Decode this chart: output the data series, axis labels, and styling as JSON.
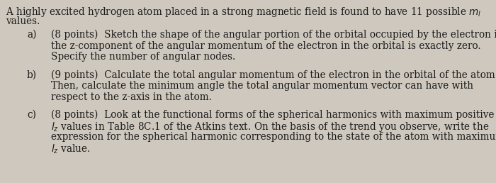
{
  "background_color": "#cec8be",
  "text_color": "#1c1c1c",
  "font_size": 9.8,
  "intro": "A highly excited hydrogen atom placed in a strong magnetic field is found to have 11 possible $m_l$\nvalues.",
  "a_label": "a)",
  "a_text": "(8 points)  Sketch the shape of the angular portion of the orbital occupied by the electron if\nthe z-component of the angular momentum of the electron in the orbital is exactly zero.\nSpecify the number of angular nodes.",
  "b_label": "b)",
  "b_text": "(9 points)  Calculate the total angular momentum of the electron in the orbital of the atom.\nThen, calculate the minimum angle the total angular momentum vector can have with\nrespect to the z-axis in the atom.",
  "c_label": "c)",
  "c_text": "(8 points)  Look at the functional forms of the spherical harmonics with maximum positive\n$l_z$ values in Table 8C.1 of the Atkins text. On the basis of the trend you observe, write the\nexpression for the spherical harmonic corresponding to the state of the atom with maximum\n$l_z$ value."
}
